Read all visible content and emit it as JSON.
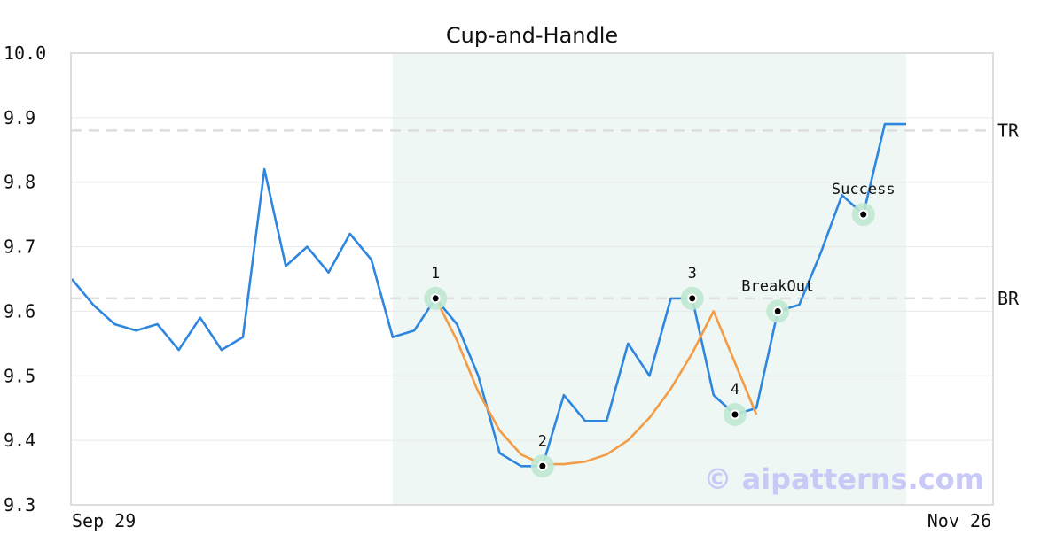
{
  "chart_data": {
    "type": "line",
    "title": "Cup-and-Handle",
    "xlabel": "",
    "ylabel": "",
    "ylim": [
      9.3,
      10.0
    ],
    "yticks": [
      "9.3",
      "9.4",
      "9.5",
      "9.6",
      "9.7",
      "9.8",
      "9.9",
      "10.0"
    ],
    "x_tick_labels": [
      "Sep 29",
      "Nov 26"
    ],
    "grid": true,
    "series": [
      {
        "color": "#2e86de",
        "values": [
          9.65,
          9.61,
          9.58,
          9.57,
          9.58,
          9.54,
          9.59,
          9.54,
          9.56,
          9.82,
          9.67,
          9.7,
          9.66,
          9.72,
          9.68,
          9.56,
          9.57,
          9.62,
          9.58,
          9.5,
          9.38,
          9.36,
          9.36,
          9.47,
          9.43,
          9.43,
          9.55,
          9.5,
          9.62,
          9.62,
          9.47,
          9.44,
          9.45,
          9.6,
          9.61,
          9.69,
          9.78,
          9.75,
          9.89,
          9.89
        ]
      },
      {
        "color": "#f39c45",
        "start_index": 17,
        "values": [
          9.62,
          9.555,
          9.475,
          9.415,
          9.378,
          9.363,
          9.363,
          9.367,
          9.378,
          9.4,
          9.435,
          9.48,
          9.535,
          9.6,
          9.52,
          9.44
        ]
      }
    ],
    "highlight_region": {
      "start_index": 15,
      "end_index": 39,
      "color": "#eef7f4"
    },
    "levels": [
      {
        "label": "TR",
        "value": 9.88
      },
      {
        "label": "BR",
        "value": 9.62
      }
    ],
    "points": [
      {
        "label": "1",
        "index": 17,
        "value": 9.62,
        "label_pos": "above"
      },
      {
        "label": "2",
        "index": 22,
        "value": 9.36,
        "label_pos": "above"
      },
      {
        "label": "3",
        "index": 29,
        "value": 9.62,
        "label_pos": "above"
      },
      {
        "label": "4",
        "index": 31,
        "value": 9.44,
        "label_pos": "above"
      },
      {
        "label": "BreakOut",
        "index": 33,
        "value": 9.6,
        "label_pos": "above"
      },
      {
        "label": "Success",
        "index": 37,
        "value": 9.75,
        "label_pos": "above"
      }
    ],
    "watermark": "© aipatterns.com"
  }
}
